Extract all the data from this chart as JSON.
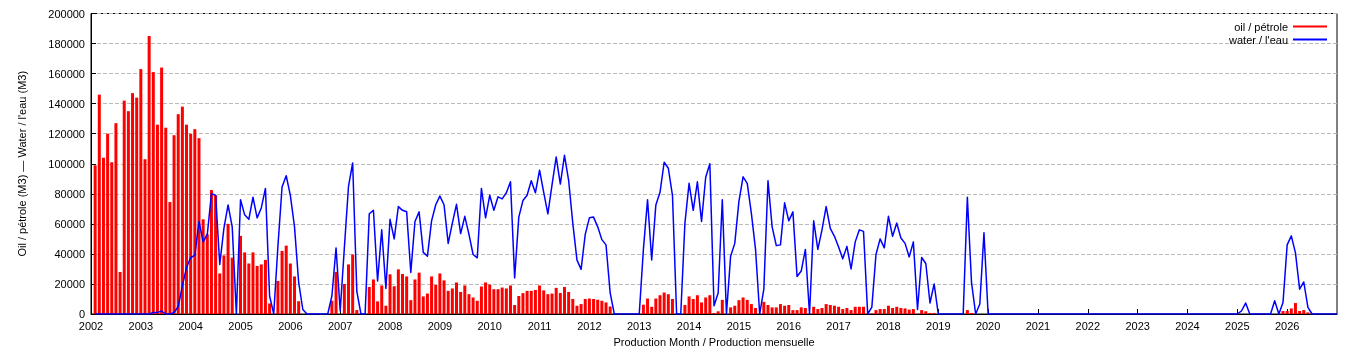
{
  "chart_data": {
    "type": "bar",
    "xlabel": "Production Month / Production mensuelle",
    "ylabel": "Oil / pétrole (M3) — Water / l'eau (M3)",
    "x": [
      "2002-02",
      "2002-03",
      "2002-04",
      "2002-05",
      "2002-06",
      "2002-07",
      "2002-08",
      "2002-09",
      "2002-10",
      "2002-11",
      "2002-12",
      "2003-01",
      "2003-02",
      "2003-03",
      "2003-04",
      "2003-05",
      "2003-06",
      "2003-07",
      "2003-08",
      "2003-09",
      "2003-10",
      "2003-11",
      "2003-12",
      "2004-01",
      "2004-02",
      "2004-03",
      "2004-04",
      "2004-05",
      "2004-06",
      "2004-07",
      "2004-08",
      "2004-09",
      "2004-10",
      "2004-11",
      "2004-12",
      "2005-01",
      "2005-02",
      "2005-03",
      "2005-04",
      "2005-05",
      "2005-06",
      "2005-07",
      "2005-08",
      "2005-09",
      "2005-10",
      "2005-11",
      "2005-12",
      "2006-01",
      "2006-02",
      "2006-03",
      "2006-04",
      "2006-05",
      "2006-06",
      "2006-07",
      "2006-08",
      "2006-09",
      "2006-10",
      "2006-11",
      "2006-12",
      "2007-01",
      "2007-02",
      "2007-03",
      "2007-04",
      "2007-05",
      "2007-06",
      "2007-07",
      "2007-08",
      "2007-09",
      "2007-10",
      "2007-11",
      "2007-12",
      "2008-01",
      "2008-02",
      "2008-03",
      "2008-04",
      "2008-05",
      "2008-06",
      "2008-07",
      "2008-08",
      "2008-09",
      "2008-10",
      "2008-11",
      "2008-12",
      "2009-01",
      "2009-02",
      "2009-03",
      "2009-04",
      "2009-05",
      "2009-06",
      "2009-07",
      "2009-08",
      "2009-09",
      "2009-10",
      "2009-11",
      "2009-12",
      "2010-01",
      "2010-02",
      "2010-03",
      "2010-04",
      "2010-05",
      "2010-06",
      "2010-07",
      "2010-08",
      "2010-09",
      "2010-10",
      "2010-11",
      "2010-12",
      "2011-01",
      "2011-02",
      "2011-03",
      "2011-04",
      "2011-05",
      "2011-06",
      "2011-07",
      "2011-08",
      "2011-09",
      "2011-10",
      "2011-11",
      "2011-12",
      "2012-01",
      "2012-02",
      "2012-03",
      "2012-04",
      "2012-05",
      "2012-06",
      "2012-07",
      "2012-08",
      "2012-09",
      "2012-10",
      "2012-11",
      "2012-12",
      "2013-01",
      "2013-02",
      "2013-03",
      "2013-04",
      "2013-05",
      "2013-06",
      "2013-07",
      "2013-08",
      "2013-09",
      "2013-10",
      "2013-11",
      "2013-12",
      "2014-01",
      "2014-02",
      "2014-03",
      "2014-04",
      "2014-05",
      "2014-06",
      "2014-07",
      "2014-08",
      "2014-09",
      "2014-10",
      "2014-11",
      "2014-12",
      "2015-01",
      "2015-02",
      "2015-03",
      "2015-04",
      "2015-05",
      "2015-06",
      "2015-07",
      "2015-08",
      "2015-09",
      "2015-10",
      "2015-11",
      "2015-12",
      "2016-01",
      "2016-02",
      "2016-03",
      "2016-04",
      "2016-05",
      "2016-06",
      "2016-07",
      "2016-08",
      "2016-09",
      "2016-10",
      "2016-11",
      "2016-12",
      "2017-01",
      "2017-02",
      "2017-03",
      "2017-04",
      "2017-05",
      "2017-06",
      "2017-07",
      "2017-08",
      "2017-09",
      "2017-10",
      "2017-11",
      "2017-12",
      "2018-01",
      "2018-02",
      "2018-03",
      "2018-04",
      "2018-05",
      "2018-06",
      "2018-07",
      "2018-08",
      "2018-09",
      "2018-10",
      "2018-11",
      "2018-12",
      "2019-01",
      "2019-02",
      "2019-03",
      "2019-04",
      "2019-05",
      "2019-06",
      "2019-07",
      "2019-08",
      "2019-09",
      "2019-10",
      "2019-11",
      "2019-12",
      "2020-01",
      "2020-02",
      "2020-03",
      "2020-04",
      "2020-05",
      "2020-06",
      "2020-07",
      "2020-08",
      "2020-09",
      "2020-10",
      "2020-11",
      "2020-12",
      "2021-01",
      "2021-02",
      "2021-03",
      "2021-04",
      "2021-05",
      "2021-06",
      "2021-07",
      "2021-08",
      "2021-09",
      "2021-10",
      "2021-11",
      "2021-12",
      "2022-01",
      "2022-02",
      "2022-03",
      "2022-04",
      "2022-05",
      "2022-06",
      "2022-07",
      "2022-08",
      "2022-09",
      "2022-10",
      "2022-11",
      "2022-12",
      "2023-01",
      "2023-02",
      "2023-03",
      "2023-04",
      "2023-05",
      "2023-06",
      "2023-07",
      "2023-08",
      "2023-09",
      "2023-10",
      "2023-11",
      "2023-12",
      "2024-01",
      "2024-02",
      "2024-03",
      "2024-04",
      "2024-05",
      "2024-06",
      "2024-07",
      "2024-08",
      "2024-09",
      "2024-10",
      "2024-11",
      "2024-12",
      "2025-01",
      "2025-02",
      "2025-03",
      "2025-04",
      "2025-05",
      "2025-06",
      "2025-07",
      "2025-08",
      "2025-09",
      "2025-10",
      "2025-11",
      "2025-12",
      "2026-01",
      "2026-02",
      "2026-03",
      "2026-04",
      "2026-05",
      "2026-06",
      "2026-07",
      "2026-08",
      "2026-09",
      "2026-10",
      "2026-11",
      "2026-12",
      "2027-01"
    ],
    "series": [
      {
        "name": "oil / pétrole",
        "color": "#ff0000",
        "values": [
          99000,
          146000,
          104000,
          120000,
          101000,
          127000,
          28000,
          142000,
          135000,
          147000,
          144000,
          163000,
          103000,
          185000,
          161000,
          126000,
          164000,
          124000,
          74500,
          119000,
          133000,
          138000,
          126000,
          120000,
          123000,
          117000,
          63000,
          53000,
          82500,
          79000,
          27000,
          39000,
          60000,
          37500,
          0,
          52000,
          41000,
          33600,
          41000,
          32000,
          33000,
          36000,
          7000,
          0,
          22000,
          42000,
          45500,
          33600,
          25000,
          8500,
          0,
          0,
          0,
          0,
          0,
          0,
          0,
          8800,
          28000,
          0,
          20000,
          33000,
          39600,
          2600,
          0,
          0,
          18000,
          23000,
          8400,
          19000,
          5500,
          26400,
          18500,
          29700,
          26600,
          25000,
          9200,
          23000,
          27500,
          11700,
          13600,
          25000,
          19400,
          27000,
          22400,
          15400,
          17000,
          21000,
          14700,
          19000,
          13200,
          11000,
          8800,
          18300,
          21000,
          19600,
          16500,
          16500,
          17600,
          17000,
          19000,
          6000,
          12000,
          13900,
          15400,
          15400,
          16000,
          19000,
          15700,
          13200,
          13600,
          17400,
          14000,
          18000,
          14700,
          10000,
          5500,
          6600,
          10000,
          10300,
          10000,
          9500,
          8800,
          7700,
          5000,
          null,
          0,
          0,
          0,
          0,
          0,
          0,
          6200,
          10300,
          4800,
          10300,
          12500,
          14300,
          13200,
          10000,
          0,
          0,
          6000,
          11700,
          10000,
          12500,
          7700,
          11000,
          12500,
          700,
          1800,
          9400,
          0,
          4400,
          5500,
          9200,
          11000,
          9400,
          6600,
          4000,
          null,
          8100,
          6000,
          4400,
          4400,
          6600,
          5500,
          6000,
          2600,
          2600,
          4400,
          4000,
          0,
          4800,
          3300,
          4000,
          6600,
          6000,
          5500,
          4800,
          3300,
          4000,
          2600,
          4800,
          4800,
          4800,
          0,
          400,
          2600,
          3300,
          3300,
          5500,
          4000,
          4800,
          4000,
          3700,
          2900,
          3300,
          0,
          2600,
          1800,
          700,
          700,
          0,
          0,
          0,
          0,
          0,
          0,
          0,
          2600,
          700,
          0,
          0,
          null,
          0,
          0,
          0,
          0,
          0,
          0,
          0,
          0,
          0,
          0,
          0,
          0,
          0,
          0,
          0,
          0,
          0,
          0,
          0,
          0,
          0,
          0,
          0,
          0,
          0,
          0,
          0,
          0,
          0,
          0,
          0,
          0,
          0,
          0,
          0,
          0,
          0,
          0,
          0,
          0,
          0,
          0,
          0,
          0,
          0,
          0,
          0,
          0,
          0,
          0,
          0,
          0,
          0,
          0,
          0,
          0,
          0,
          0,
          0,
          0,
          0,
          0,
          null,
          0,
          0,
          0,
          0,
          0,
          0,
          null,
          null,
          2000,
          2000,
          3700,
          7300,
          2000,
          2600,
          1100,
          0,
          0,
          0,
          0,
          0,
          0,
          0
        ]
      },
      {
        "name": "water / l'eau",
        "type": "line",
        "color": "#0000ff",
        "values": [
          0,
          0,
          0,
          0,
          0,
          0,
          0,
          0,
          0,
          0,
          0,
          0,
          0,
          0,
          1000,
          1000,
          2000,
          0,
          0,
          1000,
          5000,
          18700,
          31000,
          37600,
          39000,
          61600,
          48000,
          53000,
          80000,
          79000,
          33000,
          57000,
          72600,
          58000,
          0,
          76000,
          66000,
          63000,
          77700,
          64000,
          70600,
          83600,
          12000,
          0,
          45000,
          84500,
          92000,
          79000,
          58000,
          21000,
          3000,
          0,
          0,
          0,
          0,
          0,
          0,
          12000,
          44000,
          2000,
          44000,
          85000,
          100500,
          15000,
          0,
          0,
          66700,
          69000,
          22000,
          56000,
          17000,
          63000,
          50000,
          71500,
          69000,
          68000,
          27600,
          61600,
          68000,
          41000,
          38500,
          62000,
          72700,
          78500,
          72700,
          47000,
          60500,
          73000,
          53500,
          65000,
          53000,
          39600,
          37400,
          83600,
          64000,
          79000,
          69000,
          78000,
          76600,
          80700,
          88000,
          24000,
          64500,
          75500,
          79000,
          88700,
          80700,
          95700,
          81000,
          66700,
          86000,
          104500,
          86500,
          105600,
          89000,
          60500,
          36000,
          29700,
          53000,
          64000,
          64500,
          58000,
          49500,
          46000,
          14000,
          0,
          0,
          0,
          0,
          0,
          0,
          0,
          43000,
          76000,
          36000,
          72600,
          81000,
          101000,
          97000,
          79000,
          0,
          0,
          60500,
          87000,
          69000,
          88000,
          61600,
          91000,
          100000,
          5500,
          14000,
          76000,
          0,
          38500,
          47000,
          75000,
          91300,
          87000,
          67000,
          43000,
          0,
          16500,
          88700,
          58000,
          45500,
          46000,
          74000,
          62000,
          68000,
          25000,
          28600,
          43000,
          0,
          62000,
          43000,
          56000,
          71500,
          57000,
          51700,
          44600,
          36700,
          45000,
          30000,
          48000,
          56000,
          55000,
          0,
          4600,
          39600,
          50000,
          44000,
          65000,
          51700,
          60500,
          50600,
          47000,
          38000,
          48000,
          3000,
          37600,
          33600,
          7300,
          20000,
          0,
          0,
          0,
          0,
          0,
          0,
          0,
          77700,
          21000,
          0,
          6600,
          54000,
          0,
          0,
          0,
          0,
          0,
          0,
          0,
          0,
          0,
          0,
          0,
          0,
          0,
          0,
          0,
          0,
          0,
          0,
          0,
          0,
          0,
          0,
          0,
          0,
          0,
          0,
          0,
          0,
          0,
          0,
          0,
          0,
          0,
          0,
          0,
          0,
          0,
          0,
          0,
          0,
          0,
          0,
          0,
          0,
          0,
          0,
          0,
          0,
          0,
          0,
          0,
          0,
          0,
          0,
          0,
          0,
          0,
          0,
          0,
          0,
          0,
          2000,
          7300,
          0,
          0,
          0,
          0,
          0,
          0,
          8800,
          0,
          7700,
          46000,
          52000,
          40700,
          16500,
          21300,
          4400,
          0,
          0,
          0,
          0,
          0,
          0,
          0
        ]
      }
    ],
    "xlim": [
      "2002",
      "2027"
    ],
    "xticks": [
      "2002",
      "2003",
      "2004",
      "2005",
      "2006",
      "2007",
      "2008",
      "2009",
      "2010",
      "2011",
      "2012",
      "2013",
      "2014",
      "2015",
      "2016",
      "2017",
      "2018",
      "2019",
      "2020",
      "2021",
      "2022",
      "2023",
      "2024",
      "2025",
      "2026"
    ],
    "ylim": [
      0,
      200000
    ],
    "yticks": [
      0,
      20000,
      40000,
      60000,
      80000,
      100000,
      120000,
      140000,
      160000,
      180000,
      200000
    ],
    "grid": "y",
    "legend": "top right",
    "marker": "none"
  }
}
